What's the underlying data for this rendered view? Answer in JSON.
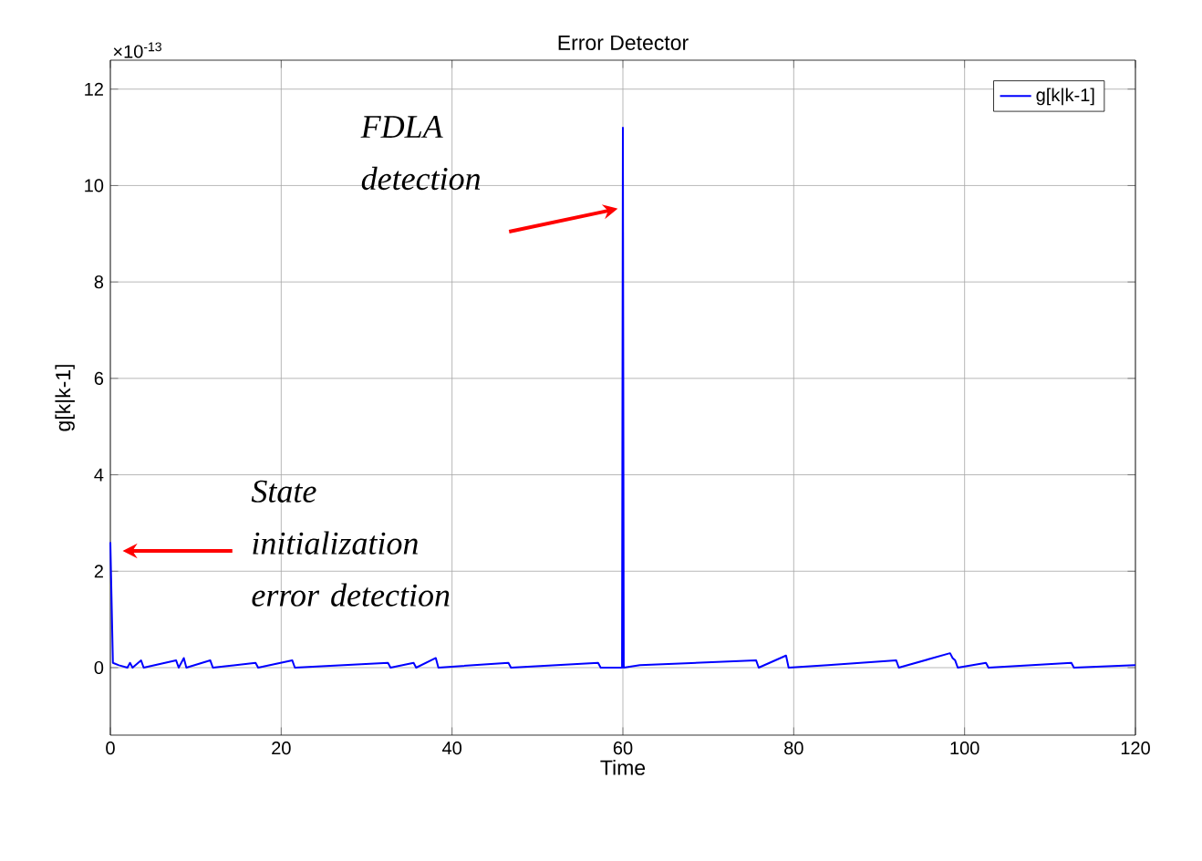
{
  "chart_data": {
    "type": "line",
    "title": "Error Detector",
    "xlabel": "Time",
    "ylabel": "g[k|k-1]",
    "xlim": [
      0,
      120
    ],
    "ylim": [
      -1.4,
      12.6
    ],
    "xticks": [
      0,
      20,
      40,
      60,
      80,
      100,
      120
    ],
    "yticks": [
      0,
      2,
      4,
      6,
      8,
      10,
      12
    ],
    "grid": true,
    "legend": "top right",
    "marker": "none",
    "line_style": "solid",
    "annotations": [
      "×10$^{-13}$",
      "FDLA detection",
      "State initialization error detection"
    ],
    "series": [
      {
        "name": "g[k|k-1]",
        "color": "#0000ff",
        "x": [
          0,
          0.3,
          1,
          2,
          2.3,
          2.6,
          3.6,
          3.9,
          7.7,
          8,
          8.6,
          8.9,
          11.7,
          12,
          17,
          17.3,
          21.3,
          21.6,
          32.5,
          32.8,
          35.5,
          35.8,
          38.1,
          38.4,
          46.6,
          46.9,
          57.1,
          57.4,
          59.9,
          60,
          60.1,
          62,
          75.6,
          75.9,
          79.1,
          79.4,
          84,
          92,
          92.3,
          98.3,
          98.6,
          98.9,
          99.2,
          102.5,
          102.8,
          112.5,
          112.8,
          120
        ],
        "values": [
          2.6,
          0.1,
          0.05,
          0,
          0.1,
          0,
          0.15,
          0,
          0.15,
          0,
          0.2,
          0,
          0.15,
          0,
          0.1,
          0,
          0.15,
          0,
          0.1,
          0,
          0.1,
          0,
          0.2,
          0,
          0.1,
          0,
          0.1,
          0,
          0,
          11.2,
          0,
          0.05,
          0.15,
          0,
          0.25,
          0,
          0.05,
          0.15,
          0,
          0.3,
          0.2,
          0.15,
          0,
          0.1,
          0,
          0.1,
          0,
          0.05
        ]
      }
    ]
  }
}
